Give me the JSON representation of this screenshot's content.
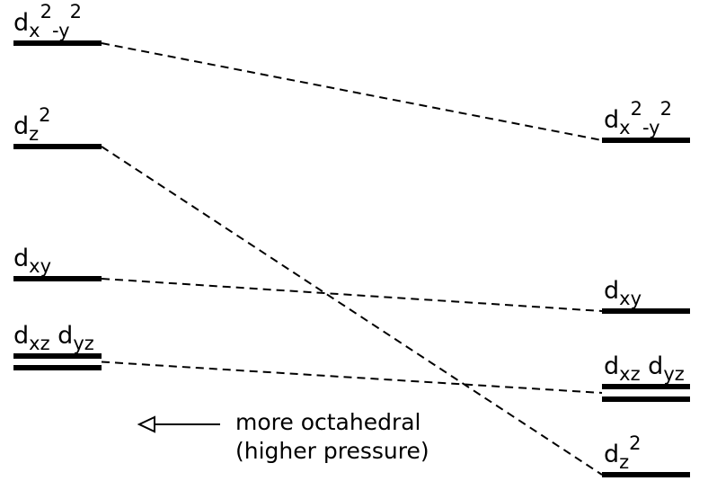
{
  "left_levels": [
    {
      "label": [
        {
          "text": "d"
        },
        {
          "text": "x",
          "script": "sub"
        },
        {
          "text": "2",
          "script": "sup"
        },
        {
          "text": "-y",
          "script": "sub"
        },
        {
          "text": "2",
          "script": "sup"
        }
      ]
    },
    {
      "label": [
        {
          "text": "d"
        },
        {
          "text": "z",
          "script": "sub"
        },
        {
          "text": "2",
          "script": "sup"
        }
      ]
    },
    {
      "label": [
        {
          "text": "d"
        },
        {
          "text": "xy",
          "script": "sub"
        }
      ]
    },
    {
      "label": [
        {
          "text": "d"
        },
        {
          "text": "xz",
          "script": "sub"
        },
        {
          "text": " d"
        },
        {
          "text": "yz",
          "script": "sub"
        }
      ]
    }
  ],
  "right_levels": [
    {
      "label": [
        {
          "text": "d"
        },
        {
          "text": "x",
          "script": "sub"
        },
        {
          "text": "2",
          "script": "sup"
        },
        {
          "text": "-y",
          "script": "sub"
        },
        {
          "text": "2",
          "script": "sup"
        }
      ]
    },
    {
      "label": [
        {
          "text": "d"
        },
        {
          "text": "xy",
          "script": "sub"
        }
      ]
    },
    {
      "label": [
        {
          "text": "d"
        },
        {
          "text": "xz",
          "script": "sub"
        },
        {
          "text": " d"
        },
        {
          "text": "yz",
          "script": "sub"
        }
      ]
    },
    {
      "label": [
        {
          "text": "d"
        },
        {
          "text": "z",
          "script": "sub"
        },
        {
          "text": "2",
          "script": "sup"
        }
      ]
    }
  ],
  "arrow_note": [
    "more octahedral",
    "(higher pressure)"
  ]
}
